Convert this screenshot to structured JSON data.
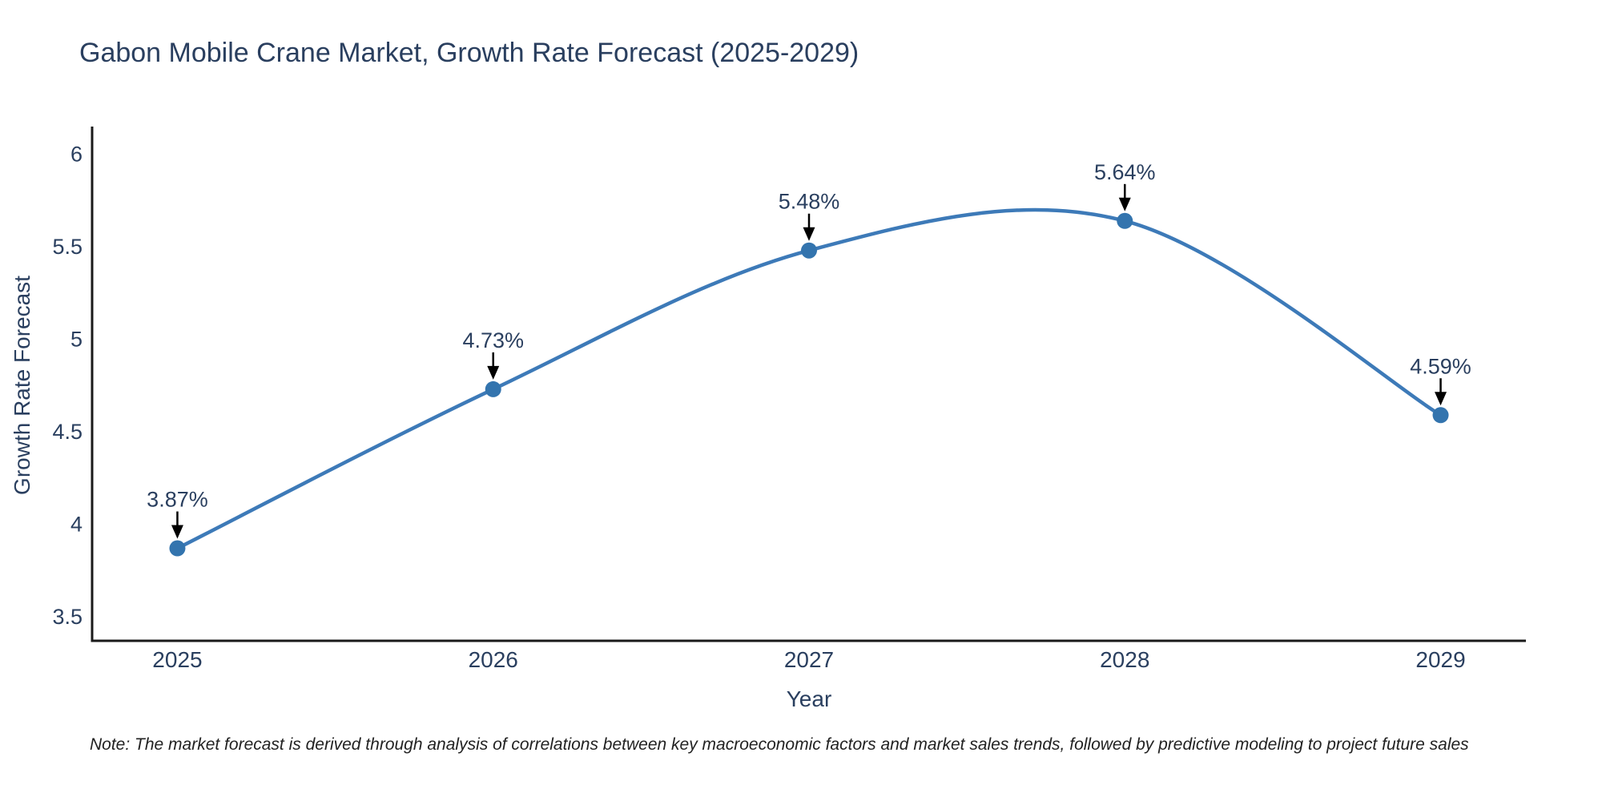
{
  "footnote": "Note: The market forecast is derived through analysis of correlations between key macroeconomic factors and market sales trends, followed by predictive modeling to project future sales",
  "chart_data": {
    "type": "line",
    "title": "Gabon Mobile Crane Market, Growth Rate Forecast (2025-2029)",
    "xlabel": "Year",
    "ylabel": "Growth Rate Forecast",
    "x": [
      2025,
      2026,
      2027,
      2028,
      2029
    ],
    "series": [
      {
        "name": "Growth Rate Forecast",
        "values": [
          3.87,
          4.73,
          5.48,
          5.64,
          4.59
        ],
        "point_labels": [
          "3.87%",
          "4.73%",
          "5.48%",
          "5.64%",
          "4.59%"
        ]
      }
    ],
    "line_shape": "spline",
    "grid": false,
    "legend": "none",
    "xtick_labels": [
      "2025",
      "2026",
      "2027",
      "2028",
      "2029"
    ],
    "ytick_values": [
      3.5,
      4,
      4.5,
      5,
      5.5,
      6
    ],
    "ytick_labels": [
      "3.5",
      "4",
      "4.5",
      "5",
      "5.5",
      "6"
    ],
    "xlim": [
      2024.73,
      2029.27
    ],
    "ylim": [
      3.37,
      6.15
    ],
    "colors": {
      "line": "#3d7ab8",
      "marker": "#3374ae",
      "arrow": "#000000",
      "text": "#2a3f5f",
      "axis": "#1a1a1a"
    }
  }
}
